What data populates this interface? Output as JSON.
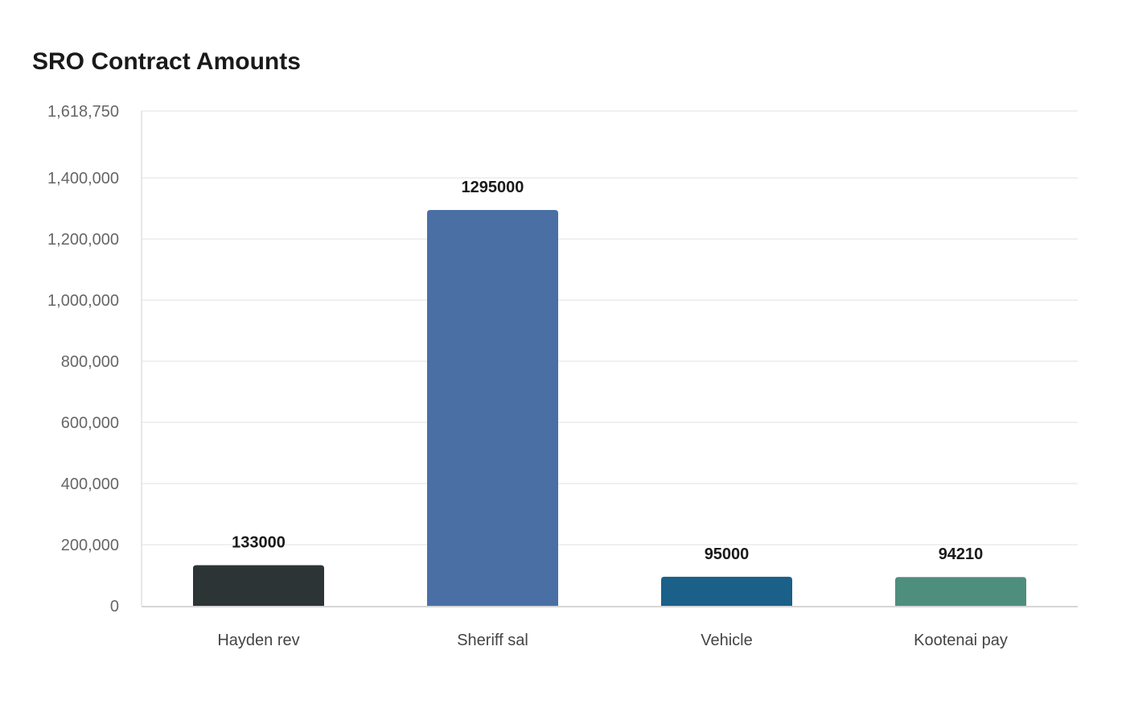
{
  "chart_data": {
    "type": "bar",
    "title": "SRO Contract Amounts",
    "xlabel": "",
    "ylabel": "",
    "categories": [
      "Hayden rev",
      "Sheriff sal",
      "Vehicle",
      "Kootenai pay"
    ],
    "values": [
      133000,
      1295000,
      95000,
      94210
    ],
    "data_labels": [
      "133000",
      "1295000",
      "95000",
      "94210"
    ],
    "colors": [
      "#2d3436",
      "#4a6fa5",
      "#1a6088",
      "#4e8e7c"
    ],
    "ylim": [
      0,
      1618750
    ],
    "yticks": [
      0,
      200000,
      400000,
      600000,
      800000,
      1000000,
      1200000,
      1400000,
      1618750
    ],
    "ytick_labels": [
      "0",
      "200,000",
      "400,000",
      "600,000",
      "800,000",
      "1,000,000",
      "1,200,000",
      "1,400,000",
      "1,618,750"
    ],
    "grid": true,
    "legend": "none"
  }
}
